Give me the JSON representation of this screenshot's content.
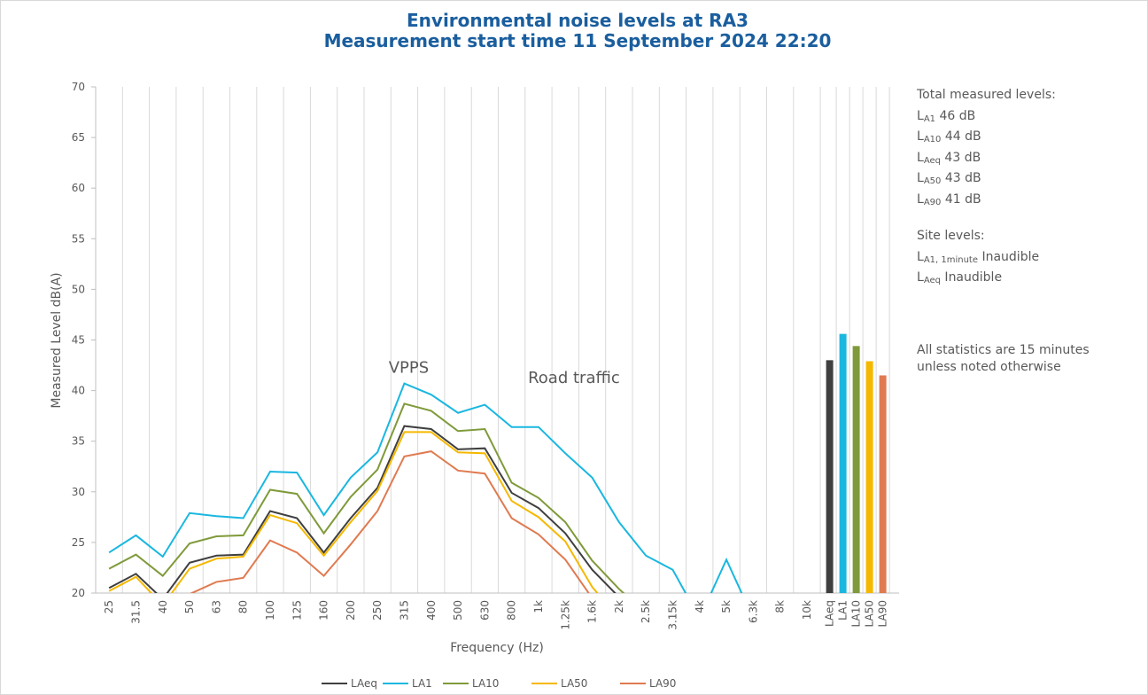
{
  "chart_data": {
    "type": "line",
    "title": [
      "Environmental noise levels at RA3",
      "Measurement start time 11 September 2024 22:20"
    ],
    "x_label": "Frequency (Hz)",
    "y_label": "Measured Level dB(A)",
    "categories": [
      "25",
      "31.5",
      "40",
      "50",
      "63",
      "80",
      "100",
      "125",
      "160",
      "200",
      "250",
      "315",
      "400",
      "500",
      "630",
      "800",
      "1k",
      "1.25k",
      "1.6k",
      "2k",
      "2.5k",
      "3.15k",
      "4k",
      "5k",
      "6.3k",
      "8k",
      "10k"
    ],
    "series": [
      {
        "name": "LAeq",
        "color": "#3f3f3f",
        "total": 43.0,
        "values": [
          20.5,
          21.9,
          19.4,
          23.0,
          23.7,
          23.8,
          28.1,
          27.4,
          24.0,
          27.4,
          30.4,
          36.5,
          36.2,
          34.2,
          34.3,
          29.9,
          28.4,
          25.9,
          22.3,
          19.6,
          null,
          null,
          null,
          null,
          null,
          null,
          null
        ]
      },
      {
        "name": "LA1",
        "color": "#1ab7e0",
        "total": 45.6,
        "values": [
          24.0,
          25.7,
          23.6,
          27.9,
          27.6,
          27.4,
          32.0,
          31.9,
          27.7,
          31.4,
          33.9,
          40.7,
          39.6,
          37.8,
          38.6,
          36.4,
          36.4,
          33.8,
          31.4,
          27.0,
          23.7,
          22.3,
          17.5,
          23.3,
          17.5,
          null,
          null
        ]
      },
      {
        "name": "LA10",
        "color": "#7f9a3a",
        "total": 44.4,
        "values": [
          22.4,
          23.8,
          21.7,
          24.9,
          25.6,
          25.7,
          30.2,
          29.8,
          25.9,
          29.5,
          32.2,
          38.7,
          38.0,
          36.0,
          36.2,
          30.9,
          29.4,
          27.0,
          23.2,
          20.4,
          18.0,
          null,
          null,
          null,
          null,
          null,
          null
        ]
      },
      {
        "name": "LA50",
        "color": "#f5b800",
        "total": 42.9,
        "values": [
          20.2,
          21.6,
          18.8,
          22.4,
          23.4,
          23.6,
          27.7,
          26.9,
          23.7,
          27.0,
          30.1,
          35.9,
          35.9,
          33.9,
          33.8,
          29.1,
          27.5,
          25.1,
          20.6,
          17.5,
          null,
          null,
          null,
          null,
          null,
          null,
          null
        ]
      },
      {
        "name": "LA90",
        "color": "#e07a50",
        "total": 41.5,
        "values": [
          18.5,
          19.0,
          17.5,
          19.9,
          21.1,
          21.5,
          25.2,
          24.0,
          21.7,
          24.8,
          28.1,
          33.5,
          34.0,
          32.1,
          31.8,
          27.4,
          25.8,
          23.3,
          19.5,
          null,
          null,
          null,
          null,
          null,
          null,
          null,
          null
        ]
      }
    ],
    "ylim": [
      20,
      70
    ],
    "yticks": [
      20,
      25,
      30,
      35,
      40,
      45,
      50,
      55,
      60,
      65,
      70
    ],
    "annotations": [
      {
        "text": "VPPS",
        "category": 11,
        "y": 40
      },
      {
        "text": "Road traffic",
        "category": 16,
        "y": 39
      }
    ],
    "side_notes": {
      "total_heading": "Total measured levels:",
      "totals": [
        {
          "main": "L",
          "sub": "A1",
          "rest": " 46 dB"
        },
        {
          "main": "L",
          "sub": "A10",
          "rest": " 44 dB"
        },
        {
          "main": "L",
          "sub": "Aeq",
          "rest": " 43 dB"
        },
        {
          "main": "L",
          "sub": "A50",
          "rest": " 43 dB"
        },
        {
          "main": "L",
          "sub": "A90",
          "rest": " 41 dB"
        }
      ],
      "site_heading": "Site levels:",
      "site": [
        {
          "main": "L",
          "sub": "A1, 1minute",
          "rest": " Inaudible"
        },
        {
          "main": "L",
          "sub": "Aeq",
          "rest": " Inaudible"
        }
      ],
      "note": [
        "All statistics are 15 minutes",
        "unless noted otherwise"
      ]
    }
  }
}
